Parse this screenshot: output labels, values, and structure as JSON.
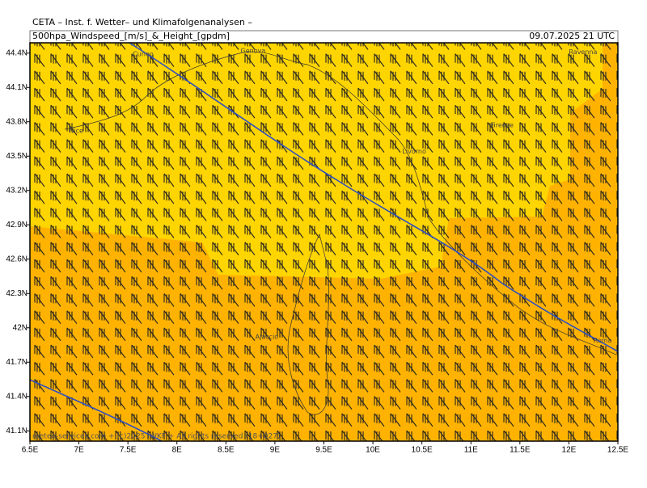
{
  "header": {
    "institute": "CETA – Inst. f. Wetter– und Klimafolgenanalysen –",
    "product": "500hpa_Windspeed_[m/s]_&_Height_[gpdm]",
    "valid_time": "09.07.2025 21 UTC"
  },
  "map": {
    "xlim": [
      6.5,
      12.5
    ],
    "ylim": [
      41.01,
      44.49
    ],
    "xticks": [
      {
        "value": 6.5,
        "label": "6.5E"
      },
      {
        "value": 7,
        "label": "7E"
      },
      {
        "value": 7.5,
        "label": "7.5E"
      },
      {
        "value": 8,
        "label": "8E"
      },
      {
        "value": 8.5,
        "label": "8.5E"
      },
      {
        "value": 9,
        "label": "9E"
      },
      {
        "value": 9.5,
        "label": "9.5E"
      },
      {
        "value": 10,
        "label": "10E"
      },
      {
        "value": 10.5,
        "label": "10.5E"
      },
      {
        "value": 11,
        "label": "11E"
      },
      {
        "value": 11.5,
        "label": "11.5E"
      },
      {
        "value": 12,
        "label": "12E"
      },
      {
        "value": 12.5,
        "label": "12.5E"
      }
    ],
    "yticks": [
      {
        "value": 44.4,
        "label": "44.4N"
      },
      {
        "value": 44.1,
        "label": "44.1N"
      },
      {
        "value": 43.8,
        "label": "43.8N"
      },
      {
        "value": 43.5,
        "label": "43.5N"
      },
      {
        "value": 43.2,
        "label": "43.2N"
      },
      {
        "value": 42.9,
        "label": "42.9N"
      },
      {
        "value": 42.6,
        "label": "42.6N"
      },
      {
        "value": 42.3,
        "label": "42.3N"
      },
      {
        "value": 42,
        "label": "42N"
      },
      {
        "value": 41.7,
        "label": "41.7N"
      },
      {
        "value": 41.4,
        "label": "41.4N"
      },
      {
        "value": 41.1,
        "label": "41.1N"
      }
    ],
    "cities": [
      {
        "name": "Cuneo",
        "lon": 7.55,
        "lat": 44.39
      },
      {
        "name": "Genova",
        "lon": 8.65,
        "lat": 44.42
      },
      {
        "name": "Ravenna",
        "lon": 12.0,
        "lat": 44.41
      },
      {
        "name": "Nice",
        "lon": 6.9,
        "lat": 43.72
      },
      {
        "name": "Firenze",
        "lon": 11.2,
        "lat": 43.77
      },
      {
        "name": "Livorno",
        "lon": 10.3,
        "lat": 43.54
      },
      {
        "name": "Ajaccio",
        "lon": 8.8,
        "lat": 41.92
      },
      {
        "name": "Roma",
        "lon": 12.25,
        "lat": 41.89
      }
    ]
  },
  "footer": "meteo-services.com + (c)2025 IWKF + All rights reserved (18+027)"
}
